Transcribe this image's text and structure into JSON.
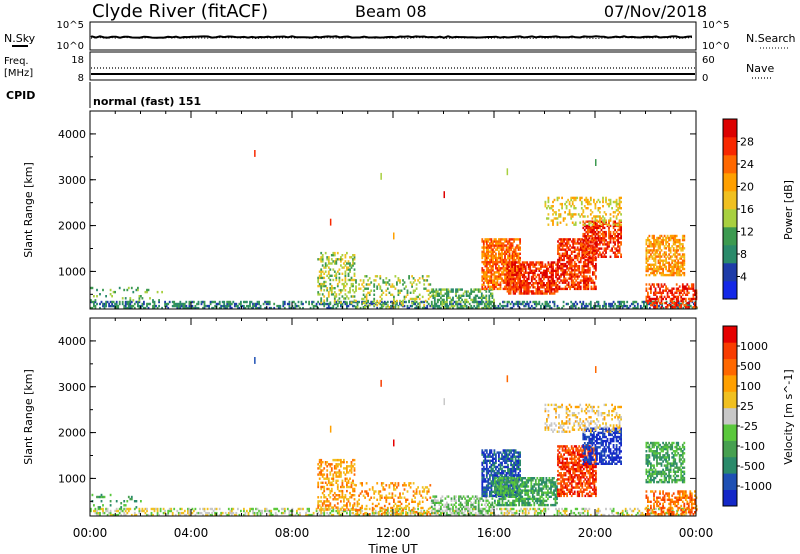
{
  "header": {
    "title": "Clyde River (fitACF)",
    "beam": "Beam 08",
    "date": "07/Nov/2018"
  },
  "nsky_panel": {
    "left_label": "N.Sky",
    "left_ticks": [
      "10^5",
      "10^0"
    ],
    "right_ticks": [
      "10^5",
      "10^0"
    ],
    "right_label": "N.Search"
  },
  "freq_panel": {
    "left_label_1": "Freq.",
    "left_label_2": "[MHz]",
    "left_ticks": [
      "18",
      "8"
    ],
    "right_ticks": [
      "60",
      "0"
    ],
    "right_label": "Nave"
  },
  "cpid": {
    "label": "CPID",
    "mode": "normal (fast) 151"
  },
  "colors": {
    "power": [
      "#1428e6",
      "#1e3ca8",
      "#2a8a6a",
      "#3c9a50",
      "#a8d040",
      "#f0c020",
      "#ffa000",
      "#ff6800",
      "#f82800",
      "#dc0000"
    ],
    "velocity": [
      "#1428c8",
      "#1e50b4",
      "#2a8a6a",
      "#46a050",
      "#5ac83c",
      "#c8c8c8",
      "#f0c020",
      "#ffa000",
      "#ff6800",
      "#f83c00",
      "#e60000"
    ]
  },
  "chart_data": [
    {
      "type": "heatmap",
      "name": "power",
      "ylabel": "Slant Range [km]",
      "yticks": [
        "4000",
        "3000",
        "2000",
        "1000"
      ],
      "ylim": [
        180,
        4500
      ],
      "xlim": [
        0,
        24
      ],
      "xticks": [
        "00:00",
        "04:00",
        "08:00",
        "12:00",
        "16:00",
        "20:00",
        "00:00"
      ],
      "colorbar_label": "Power [dB]",
      "colorbar_ticks": [
        "28",
        "24",
        "20",
        "16",
        "12",
        "8",
        "4"
      ],
      "colorbar_range": [
        0,
        30
      ],
      "regions": [
        {
          "t0": 0.0,
          "t1": 24.0,
          "r0": 180,
          "r1": 350,
          "c": 2,
          "d": 0.5
        },
        {
          "t0": 0.0,
          "t1": 3.0,
          "r0": 350,
          "r1": 650,
          "c": 3,
          "d": 0.12
        },
        {
          "t0": 9.0,
          "t1": 10.5,
          "r0": 300,
          "r1": 1400,
          "c": 4,
          "d": 0.4
        },
        {
          "t0": 10.5,
          "t1": 13.5,
          "r0": 200,
          "r1": 900,
          "c": 4,
          "d": 0.25
        },
        {
          "t0": 13.5,
          "t1": 16.0,
          "r0": 180,
          "r1": 600,
          "c": 3,
          "d": 0.5
        },
        {
          "t0": 15.5,
          "t1": 17.0,
          "r0": 600,
          "r1": 1700,
          "c": 7,
          "d": 0.75
        },
        {
          "t0": 16.5,
          "t1": 18.5,
          "r0": 500,
          "r1": 1200,
          "c": 8,
          "d": 0.7
        },
        {
          "t0": 18.5,
          "t1": 20.0,
          "r0": 600,
          "r1": 1700,
          "c": 8,
          "d": 0.7
        },
        {
          "t0": 19.5,
          "t1": 21.0,
          "r0": 1300,
          "r1": 2100,
          "c": 8,
          "d": 0.65
        },
        {
          "t0": 18.0,
          "t1": 21.0,
          "r0": 2000,
          "r1": 2600,
          "c": 5,
          "d": 0.3
        },
        {
          "t0": 22.0,
          "t1": 23.5,
          "r0": 900,
          "r1": 1800,
          "c": 6,
          "d": 0.6
        },
        {
          "t0": 22.0,
          "t1": 24.0,
          "r0": 200,
          "r1": 700,
          "c": 8,
          "d": 0.5
        }
      ]
    },
    {
      "type": "heatmap",
      "name": "velocity",
      "ylabel": "Slant Range [km]",
      "yticks": [
        "4000",
        "3000",
        "2000",
        "1000"
      ],
      "ylim": [
        180,
        4500
      ],
      "xlim": [
        0,
        24
      ],
      "xticks": [
        "00:00",
        "04:00",
        "08:00",
        "12:00",
        "16:00",
        "20:00",
        "00:00"
      ],
      "xlabel": "Time UT",
      "colorbar_label": "Velocity [m s^-1]",
      "colorbar_ticks": [
        "1000",
        "500",
        "100",
        "25",
        "-25",
        "-100",
        "-500",
        "-1000"
      ],
      "colorbar_range": [
        -1200,
        1200
      ],
      "regions": [
        {
          "t0": 0.0,
          "t1": 24.0,
          "r0": 180,
          "r1": 350,
          "c": 5,
          "d": 0.45
        },
        {
          "t0": 0.0,
          "t1": 2.0,
          "r0": 350,
          "r1": 650,
          "c": 3,
          "d": 0.15
        },
        {
          "t0": 9.0,
          "t1": 10.5,
          "r0": 300,
          "r1": 1400,
          "c": 7,
          "d": 0.4
        },
        {
          "t0": 10.5,
          "t1": 13.5,
          "r0": 200,
          "r1": 900,
          "c": 7,
          "d": 0.25
        },
        {
          "t0": 13.5,
          "t1": 16.0,
          "r0": 180,
          "r1": 600,
          "c": 4,
          "d": 0.5
        },
        {
          "t0": 15.5,
          "t1": 17.0,
          "r0": 600,
          "r1": 1600,
          "c": 1,
          "d": 0.75
        },
        {
          "t0": 16.0,
          "t1": 18.5,
          "r0": 400,
          "r1": 1000,
          "c": 3,
          "d": 0.7
        },
        {
          "t0": 18.5,
          "t1": 20.0,
          "r0": 600,
          "r1": 1700,
          "c": 9,
          "d": 0.7
        },
        {
          "t0": 19.5,
          "t1": 21.0,
          "r0": 1300,
          "r1": 2100,
          "c": 0,
          "d": 0.6
        },
        {
          "t0": 18.0,
          "t1": 21.0,
          "r0": 2000,
          "r1": 2600,
          "c": 6,
          "d": 0.3
        },
        {
          "t0": 22.0,
          "t1": 23.5,
          "r0": 900,
          "r1": 1800,
          "c": 3,
          "d": 0.6
        },
        {
          "t0": 22.0,
          "t1": 24.0,
          "r0": 200,
          "r1": 700,
          "c": 8,
          "d": 0.5
        }
      ]
    }
  ]
}
